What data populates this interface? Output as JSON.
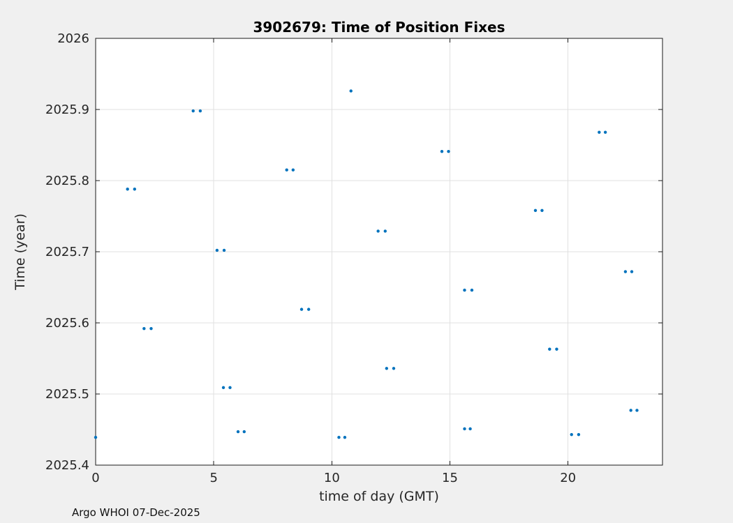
{
  "chart_data": {
    "type": "scatter",
    "title": "3902679: Time of Position Fixes",
    "xlabel": "time of day (GMT)",
    "ylabel": "Time (year)",
    "annotation": "Argo WHOI 07-Dec-2025",
    "xlim": [
      0,
      24
    ],
    "ylim": [
      2025.4,
      2026
    ],
    "xtick_values": [
      0,
      5,
      10,
      15,
      20
    ],
    "xtick_labels": [
      "0",
      "5",
      "10",
      "15",
      "20"
    ],
    "ytick_values": [
      2025.4,
      2025.5,
      2025.6,
      2025.7,
      2025.8,
      2025.9,
      2026
    ],
    "ytick_labels": [
      "2025.4",
      "2025.5",
      "2025.6",
      "2025.7",
      "2025.8",
      "2025.9",
      "2026"
    ],
    "grid": true,
    "legend": "none",
    "marker_color": "#0072BD",
    "grid_color": "#e0e0e0",
    "axis_color": "#1a1a1a",
    "plot_bg": "#ffffff",
    "figure_bg": "#f0f0f0",
    "points": [
      [
        0.0,
        2025.439
      ],
      [
        1.35,
        2025.788
      ],
      [
        1.65,
        2025.788
      ],
      [
        2.05,
        2025.592
      ],
      [
        2.35,
        2025.592
      ],
      [
        4.13,
        2025.898
      ],
      [
        4.43,
        2025.898
      ],
      [
        5.14,
        2025.702
      ],
      [
        5.44,
        2025.702
      ],
      [
        5.41,
        2025.509
      ],
      [
        5.69,
        2025.509
      ],
      [
        6.03,
        2025.447
      ],
      [
        6.29,
        2025.447
      ],
      [
        8.09,
        2025.815
      ],
      [
        8.36,
        2025.815
      ],
      [
        8.72,
        2025.619
      ],
      [
        9.02,
        2025.619
      ],
      [
        10.3,
        2025.439
      ],
      [
        10.55,
        2025.439
      ],
      [
        10.81,
        2025.926
      ],
      [
        11.96,
        2025.729
      ],
      [
        12.26,
        2025.729
      ],
      [
        12.32,
        2025.536
      ],
      [
        12.62,
        2025.536
      ],
      [
        14.66,
        2025.841
      ],
      [
        14.94,
        2025.841
      ],
      [
        15.62,
        2025.646
      ],
      [
        15.93,
        2025.646
      ],
      [
        15.62,
        2025.451
      ],
      [
        15.86,
        2025.451
      ],
      [
        18.62,
        2025.758
      ],
      [
        18.9,
        2025.758
      ],
      [
        19.22,
        2025.563
      ],
      [
        19.52,
        2025.563
      ],
      [
        20.15,
        2025.443
      ],
      [
        20.45,
        2025.443
      ],
      [
        21.32,
        2025.868
      ],
      [
        21.58,
        2025.868
      ],
      [
        22.43,
        2025.672
      ],
      [
        22.7,
        2025.672
      ],
      [
        22.66,
        2025.477
      ],
      [
        22.92,
        2025.477
      ]
    ]
  }
}
